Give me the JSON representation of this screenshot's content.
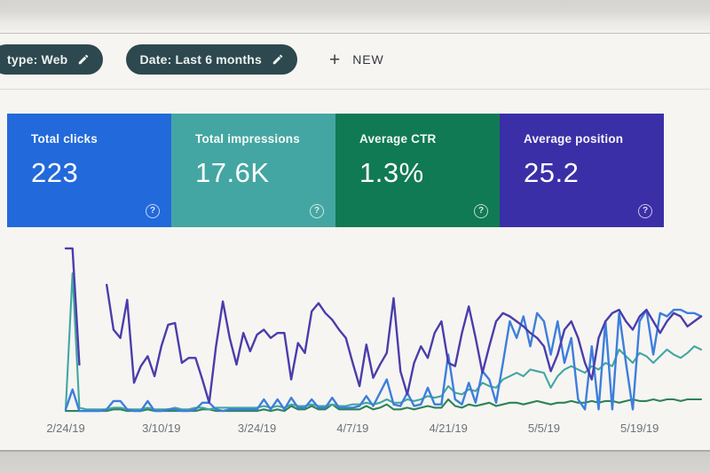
{
  "toolbar": {
    "type_chip_label": "type: Web",
    "date_chip_label": "Date: Last 6 months",
    "plus_icon": "+",
    "new_label": "NEW"
  },
  "cards": [
    {
      "label": "Total clicks",
      "value": "223",
      "color": "#2269db",
      "help_icon": "?"
    },
    {
      "label": "Total impressions",
      "value": "17.6K",
      "color": "#44a6a2",
      "help_icon": "?"
    },
    {
      "label": "Average CTR",
      "value": "1.3%",
      "color": "#107a54",
      "help_icon": "?"
    },
    {
      "label": "Average position",
      "value": "25.2",
      "color": "#3a2fa7",
      "help_icon": "?"
    }
  ],
  "chart_data": {
    "type": "line",
    "x_tick_labels": [
      "2/24/19",
      "3/10/19",
      "3/24/19",
      "4/7/19",
      "4/21/19",
      "5/5/19",
      "5/19/19"
    ],
    "x_tick_days": [
      0,
      14,
      28,
      42,
      56,
      70,
      84
    ],
    "days_span": 94,
    "grid": "off",
    "legend": "none (metric cards above act as legend)",
    "y_axis": "hidden; each series independently scaled, values are normalized 0-100 of plot height",
    "series": [
      {
        "name": "Clicks",
        "color": "#3d7edc",
        "values": [
          2,
          14,
          1,
          1,
          1,
          1,
          2,
          7,
          7,
          2,
          1,
          1,
          7,
          1,
          1,
          2,
          2,
          1,
          1,
          2,
          6,
          6,
          2,
          1,
          2,
          2,
          2,
          2,
          2,
          8,
          2,
          8,
          2,
          9,
          3,
          3,
          8,
          3,
          3,
          9,
          3,
          3,
          3,
          4,
          10,
          4,
          12,
          20,
          5,
          4,
          12,
          4,
          5,
          15,
          5,
          5,
          35,
          8,
          5,
          18,
          6,
          25,
          20,
          6,
          30,
          55,
          45,
          58,
          40,
          60,
          55,
          35,
          55,
          30,
          45,
          8,
          2,
          40,
          2,
          55,
          2,
          60,
          30,
          2,
          55,
          62,
          35,
          60,
          58,
          62,
          62,
          60,
          60,
          58
        ]
      },
      {
        "name": "Impressions",
        "color": "#42a6a2",
        "values": [
          2,
          84,
          3,
          2,
          2,
          2,
          2,
          3,
          3,
          2,
          2,
          2,
          3,
          2,
          2,
          2,
          3,
          2,
          2,
          3,
          3,
          2,
          3,
          3,
          3,
          3,
          3,
          3,
          3,
          4,
          3,
          4,
          3,
          5,
          4,
          4,
          5,
          4,
          4,
          5,
          4,
          4,
          5,
          5,
          6,
          5,
          6,
          8,
          6,
          6,
          8,
          7,
          8,
          10,
          9,
          10,
          16,
          12,
          11,
          14,
          13,
          18,
          16,
          15,
          20,
          22,
          24,
          22,
          26,
          25,
          24,
          15,
          22,
          26,
          28,
          26,
          24,
          28,
          26,
          30,
          28,
          38,
          34,
          30,
          36,
          34,
          30,
          34,
          38,
          35,
          33,
          36,
          40,
          38
        ]
      },
      {
        "name": "CTR",
        "color": "#2d8355",
        "values": [
          1,
          1,
          1,
          1,
          1,
          1,
          1,
          2,
          2,
          1,
          1,
          1,
          2,
          1,
          1,
          1,
          1,
          1,
          1,
          1,
          2,
          2,
          1,
          1,
          1,
          1,
          1,
          1,
          1,
          2,
          1,
          2,
          1,
          4,
          2,
          2,
          4,
          2,
          2,
          5,
          2,
          2,
          2,
          2,
          4,
          2,
          3,
          5,
          2,
          2,
          3,
          2,
          3,
          4,
          3,
          3,
          8,
          4,
          3,
          5,
          4,
          5,
          6,
          4,
          5,
          6,
          6,
          5,
          6,
          7,
          6,
          5,
          6,
          6,
          7,
          6,
          6,
          7,
          6,
          7,
          7,
          6,
          7,
          8,
          7,
          7,
          8,
          7,
          8,
          8,
          7,
          8,
          8,
          8
        ]
      },
      {
        "name": "Position",
        "color": "#4a3dab",
        "values": [
          99,
          99,
          29,
          null,
          null,
          null,
          77,
          50,
          45,
          68,
          18,
          28,
          34,
          22,
          40,
          53,
          54,
          30,
          33,
          33,
          20,
          6,
          40,
          67,
          45,
          29,
          48,
          37,
          47,
          50,
          45,
          48,
          48,
          20,
          42,
          36,
          61,
          66,
          60,
          56,
          50,
          45,
          30,
          16,
          41,
          21,
          29,
          36,
          69,
          25,
          11,
          30,
          40,
          33,
          48,
          55,
          30,
          28,
          48,
          64,
          45,
          24,
          40,
          55,
          60,
          58,
          55,
          52,
          48,
          45,
          40,
          25,
          35,
          50,
          55,
          45,
          30,
          20,
          45,
          55,
          60,
          62,
          55,
          50,
          58,
          62,
          55,
          48,
          55,
          60,
          58,
          52,
          55,
          58
        ]
      }
    ]
  }
}
